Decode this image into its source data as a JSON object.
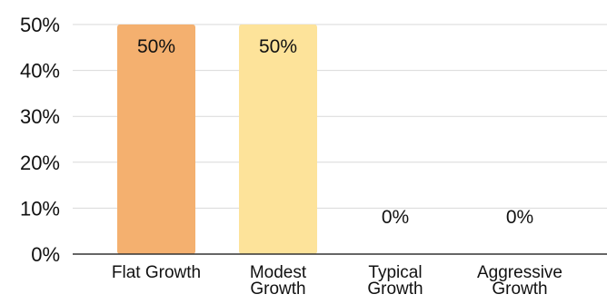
{
  "chart_data": {
    "type": "bar",
    "categories": [
      [
        "Flat Growth"
      ],
      [
        "Modest",
        "Growth"
      ],
      [
        "Typical",
        "Growth"
      ],
      [
        "Aggressive",
        "Growth"
      ]
    ],
    "values": [
      50,
      50,
      0,
      0
    ],
    "data_labels": [
      "50%",
      "50%",
      "0%",
      "0%"
    ],
    "bar_colors": [
      "#f4b06f",
      "#fde39a",
      "#f4b06f",
      "#fde39a"
    ],
    "ylim": [
      0,
      50
    ],
    "yticks": [
      0,
      10,
      20,
      30,
      40,
      50
    ],
    "ytick_labels": [
      "0%",
      "10%",
      "20%",
      "30%",
      "40%",
      "50%"
    ],
    "grid": true,
    "legend": "none",
    "title": "",
    "xlabel": "",
    "ylabel": ""
  }
}
